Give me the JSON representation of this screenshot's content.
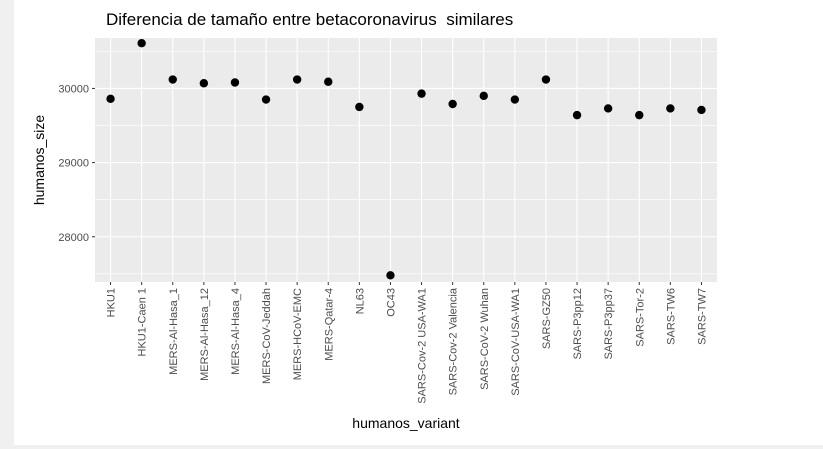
{
  "chart_data": {
    "type": "scatter",
    "title": "Diferencia de tamaño entre betacoronavirus  similares",
    "xlabel": "humanos_variant",
    "ylabel": "humanos_size",
    "y_ticks": [
      28000,
      29000,
      30000
    ],
    "ylim": [
      27390,
      30680
    ],
    "grid": true,
    "panel_background": "#ebebeb",
    "point_color": "#000000",
    "categories": [
      "HKU1",
      "HKU1-Caen 1",
      "MERS-Al-Hasa_1",
      "MERS-Al-Hasa_12",
      "MERS-Al-Hasa_4",
      "MERS-CoV-Jeddah",
      "MERS-HCoV-EMC",
      "MERS-Qatar-4",
      "NL63",
      "OC43",
      "SARS-Cov-2 USA-WA1",
      "SARS-Cov-2 Valencia",
      "SARS-CoV-2 Wuhan",
      "SARS-CoV-USA-WA1",
      "SARS-GZ50",
      "SARS-P3pp12",
      "SARS-P3pp37",
      "SARS-Tor-2",
      "SARS-TW6",
      "SARS-TW7"
    ],
    "values": [
      29860,
      30610,
      30120,
      30070,
      30080,
      29850,
      30120,
      30090,
      29750,
      27480,
      29930,
      29790,
      29900,
      29850,
      30120,
      29640,
      29730,
      29640,
      29730,
      29710
    ]
  }
}
